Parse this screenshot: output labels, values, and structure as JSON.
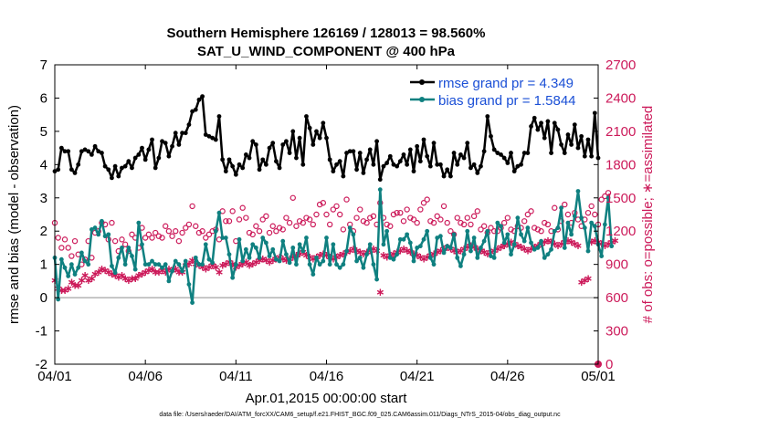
{
  "chart_data": {
    "type": "line",
    "title": "Southern Hemisphere 126169 / 128013 = 98.560%",
    "subtitle": "SAT_U_WIND_COMPONENT @ 400 hPa",
    "xlabel": "Apr.01,2015 00:00:00 start",
    "ylabel": "rmse and bias (model - observation)",
    "y2label": "# of obs: o=possible; ∗=assimilated",
    "x_ticks": [
      "04/01",
      "04/06",
      "04/11",
      "04/16",
      "04/21",
      "04/26",
      "05/01"
    ],
    "y_ticks": [
      "-2",
      "-1",
      "0",
      "1",
      "2",
      "3",
      "4",
      "5",
      "6",
      "7"
    ],
    "y2_ticks": [
      "0",
      "300",
      "600",
      "900",
      "1200",
      "1500",
      "1800",
      "2100",
      "2400",
      "2700"
    ],
    "xlim_days": [
      0,
      30
    ],
    "ylim": [
      -2,
      7
    ],
    "y2lim": [
      0,
      2700
    ],
    "legend": [
      "rmse grand pr = 4.349",
      "bias grand pr = 1.5844"
    ],
    "legend_position": "top-right",
    "colors": {
      "rmse": "#000000",
      "bias": "#0f8080",
      "obs": "#cc1a5a",
      "zero": "#b3b3b3"
    },
    "series": [
      {
        "name": "rmse",
        "values": [
          3.8,
          3.85,
          4.5,
          4.4,
          4.4,
          3.85,
          3.75,
          4.0,
          4.4,
          4.45,
          4.4,
          4.3,
          4.55,
          4.4,
          4.35,
          3.95,
          3.85,
          3.6,
          3.95,
          3.65,
          3.9,
          3.95,
          4.1,
          3.9,
          4.2,
          4.3,
          4.5,
          4.15,
          4.45,
          4.75,
          3.9,
          4.2,
          4.7,
          4.65,
          4.25,
          4.55,
          4.95,
          4.6,
          4.95,
          4.95,
          5.2,
          5.6,
          5.65,
          5.95,
          6.05,
          4.9,
          4.85,
          4.8,
          4.75,
          5.45,
          4.15,
          3.8,
          4.15,
          3.95,
          3.7,
          4.0,
          3.9,
          4.3,
          4.2,
          4.7,
          4.6,
          3.85,
          4.15,
          4.0,
          4.5,
          4.65,
          4.1,
          3.9,
          4.6,
          4.7,
          4.35,
          5.0,
          4.2,
          4.8,
          4.0,
          5.45,
          5.1,
          4.6,
          5.0,
          4.8,
          5.25,
          4.8,
          4.15,
          3.8,
          4.0,
          4.1,
          3.65,
          4.35,
          4.4,
          4.4,
          3.85,
          4.35,
          3.75,
          4.15,
          4.45,
          4.0,
          4.7,
          3.55,
          3.95,
          4.05,
          4.25,
          4.0,
          3.95,
          4.1,
          4.3,
          4.0,
          4.45,
          3.8,
          4.55,
          4.1,
          4.75,
          4.25,
          3.95,
          4.65,
          4.0,
          4.0,
          3.65,
          3.85,
          3.65,
          4.35,
          4.0,
          4.3,
          4.2,
          4.65,
          3.9,
          4.0,
          3.75,
          3.95,
          4.4,
          5.45,
          4.85,
          4.45,
          4.35,
          4.3,
          4.2,
          4.05,
          4.35,
          3.8,
          3.95,
          4.0,
          4.35,
          4.35,
          5.15,
          5.4,
          5.05,
          5.25,
          4.8,
          5.3,
          4.35,
          5.25,
          5.05,
          4.6,
          4.35,
          4.9,
          4.6,
          5.2,
          4.5,
          4.85,
          4.25,
          4.75,
          4.25,
          5.55,
          4.2
        ]
      },
      {
        "name": "bias",
        "values": [
          1.2,
          -0.05,
          1.15,
          0.9,
          0.65,
          1.0,
          0.7,
          0.9,
          1.35,
          1.1,
          1.0,
          2.05,
          2.1,
          1.9,
          2.3,
          1.85,
          1.9,
          0.95,
          0.75,
          1.2,
          1.5,
          1.0,
          1.5,
          1.25,
          0.85,
          2.25,
          1.6,
          1.0,
          1.0,
          1.1,
          1.0,
          1.0,
          0.9,
          1.0,
          0.5,
          0.8,
          1.1,
          1.0,
          0.8,
          1.1,
          0.4,
          -0.15,
          1.2,
          1.0,
          1.0,
          1.6,
          1.15,
          1.05,
          2.0,
          2.55,
          1.8,
          1.8,
          1.3,
          0.6,
          1.0,
          1.75,
          1.1,
          1.45,
          1.2,
          1.6,
          1.5,
          1.2,
          1.8,
          1.65,
          1.25,
          1.45,
          1.15,
          1.1,
          1.7,
          1.3,
          1.05,
          1.5,
          1.0,
          1.6,
          1.4,
          1.8,
          1.0,
          0.7,
          1.2,
          1.0,
          1.1,
          1.8,
          1.0,
          1.6,
          1.0,
          0.9,
          1.0,
          1.4,
          2.1,
          1.9,
          1.1,
          1.2,
          0.9,
          1.3,
          1.6,
          1.0,
          0.55,
          3.25,
          1.6,
          2.0,
          1.2,
          1.15,
          1.3,
          1.75,
          1.75,
          1.9,
          1.65,
          1.1,
          1.5,
          1.55,
          1.75,
          2.0,
          1.2,
          1.0,
          1.8,
          1.85,
          1.35,
          1.55,
          1.5,
          1.9,
          1.2,
          0.95,
          1.3,
          2.0,
          1.4,
          1.8,
          1.2,
          1.5,
          1.7,
          2.0,
          1.25,
          1.2,
          2.25,
          2.15,
          1.65,
          1.9,
          1.3,
          1.6,
          2.4,
          1.9,
          1.7,
          2.1,
          1.65,
          1.45,
          1.5,
          1.7,
          1.2,
          1.3,
          1.45,
          2.0,
          2.1,
          2.7,
          1.5,
          2.25,
          1.9,
          2.45,
          3.2,
          2.4,
          2.1,
          1.4,
          2.25,
          2.15,
          1.6,
          1.25,
          2.2,
          3.0,
          1.55
        ]
      },
      {
        "name": "obs_possible",
        "values": [
          1275,
          1140,
          1050,
          1125,
          1050,
          975,
          1110,
          990,
          900,
          945,
          1110,
          960,
          1185,
          1200,
          1275,
          1260,
          1125,
          1275,
          1110,
          1020,
          1125,
          1080,
          1020,
          1170,
          1140,
          1050,
          1230,
          1140,
          1170,
          1140,
          1185,
          1155,
          1140,
          1245,
          1200,
          1155,
          1200,
          1110,
          1185,
          1230,
          1260,
          1425,
          1245,
          1185,
          1200,
          1140,
          1170,
          1200,
          1215,
          1125,
          1380,
          1290,
          1290,
          1380,
          1110,
          1305,
          1410,
          1320,
          1185,
          1170,
          1245,
          1200,
          1305,
          1335,
          1185,
          1245,
          1200,
          1230,
          1215,
          1320,
          1275,
          1500,
          1245,
          1290,
          1275,
          1320,
          1305,
          1260,
          1350,
          1440,
          1455,
          1350,
          1260,
          1395,
          1425,
          1350,
          1215,
          1485,
          1260,
          1200,
          1320,
          1395,
          1290,
          1275,
          1320,
          1335,
          1260,
          1455,
          1320,
          1260,
          1245,
          1350,
          1365,
          1365,
          1290,
          1395,
          1320,
          1305,
          1275,
          1395,
          1455,
          1485,
          1290,
          1275,
          1335,
          1305,
          1425,
          1275,
          1200,
          1170,
          1320,
          1275,
          1260,
          1320,
          1260,
          1335,
          1380,
          1215,
          1245,
          1185,
          1230,
          1200,
          1200,
          1230,
          1275,
          1320,
          1215,
          1200,
          1245,
          1230,
          1290,
          1350,
          1380,
          1230,
          1215,
          1200,
          1275,
          1260,
          1200,
          1410,
          1215,
          1290,
          1440,
          1350,
          1275,
          1365,
          1305,
          1245,
          1305,
          1365,
          1425,
          1350,
          1260,
          1485,
          1515,
          1545
        ]
      },
      {
        "name": "obs_assimilated",
        "values": [
          765,
          690,
          675,
          675,
          690,
          750,
          720,
          720,
          765,
          810,
          765,
          780,
          825,
          840,
          870,
          855,
          840,
          825,
          810,
          795,
          810,
          780,
          765,
          780,
          780,
          810,
          825,
          840,
          855,
          870,
          840,
          840,
          855,
          840,
          870,
          855,
          870,
          840,
          840,
          900,
          915,
          945,
          915,
          900,
          885,
          870,
          885,
          900,
          885,
          840,
          900,
          915,
          930,
          915,
          885,
          900,
          915,
          930,
          900,
          915,
          930,
          945,
          960,
          945,
          930,
          945,
          960,
          975,
          960,
          945,
          960,
          975,
          990,
          1005,
          1020,
          990,
          975,
          960,
          975,
          990,
          1005,
          990,
          975,
          960,
          975,
          990,
          1005,
          1020,
          1035,
          1050,
          1035,
          1020,
          1005,
          1020,
          1035,
          1050,
          1035,
          660,
          990,
          975,
          990,
          1005,
          1020,
          1035,
          1050,
          1035,
          1020,
          1005,
          990,
          975,
          960,
          975,
          990,
          1005,
          1020,
          1035,
          1050,
          1065,
          1050,
          1035,
          1020,
          1035,
          1050,
          1065,
          1080,
          1065,
          1050,
          1035,
          1020,
          1005,
          1020,
          1035,
          1050,
          1065,
          1080,
          1095,
          1110,
          1095,
          1080,
          1065,
          1050,
          1035,
          1050,
          1065,
          1080,
          1095,
          1110,
          1125,
          1110,
          1095,
          1080,
          1095,
          1110,
          1125,
          1110,
          1095,
          1080,
          750,
          765,
          780,
          1110,
          1125,
          1110,
          1095,
          1080,
          1095,
          1110,
          1125
        ]
      }
    ]
  },
  "footer": "data file: /Users/raeder/DAI/ATM_forcXX/CAM6_setup/f.e21.FHIST_BGC.f09_025.CAM6assim.011/Diags_NTrS_2015-04/obs_diag_output.nc"
}
